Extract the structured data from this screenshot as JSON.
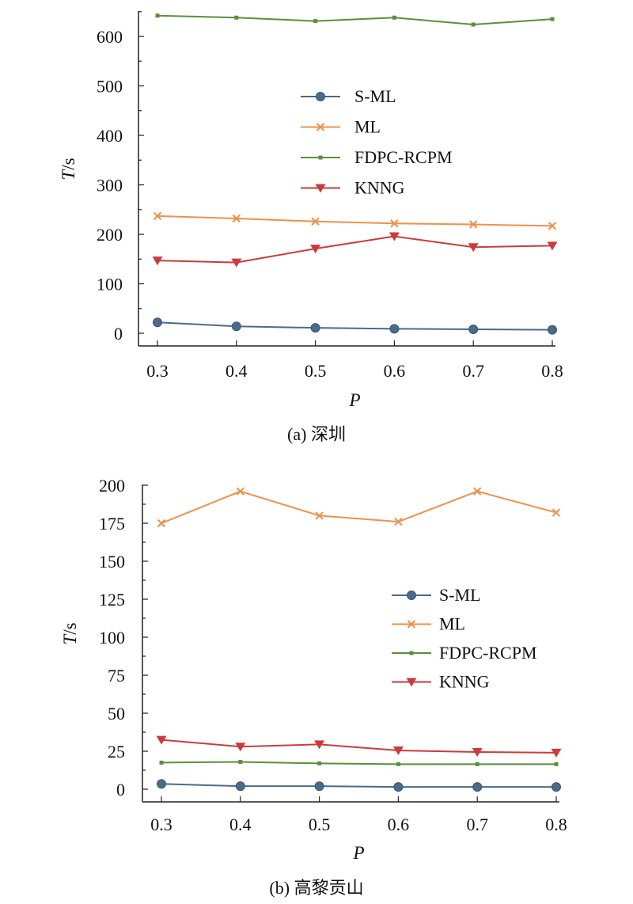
{
  "chart_data": [
    {
      "type": "line",
      "caption": "(a) 深圳",
      "xlabel": "P",
      "ylabel": "T/s",
      "x": [
        0.3,
        0.4,
        0.5,
        0.6,
        0.7,
        0.8
      ],
      "xticks": [
        "0.3",
        "0.4",
        "0.5",
        "0.6",
        "0.7",
        "0.8"
      ],
      "ylim": [
        0,
        650
      ],
      "yticks": [
        0,
        100,
        200,
        300,
        400,
        500,
        600
      ],
      "legend_position": "center",
      "grid": false,
      "series": [
        {
          "name": "S-ML",
          "color": "#4a6b8a",
          "marker": "circle",
          "values": [
            22,
            14,
            11,
            9,
            8,
            7
          ]
        },
        {
          "name": "ML",
          "color": "#f0904a",
          "marker": "x",
          "values": [
            237,
            232,
            226,
            222,
            220,
            217
          ]
        },
        {
          "name": "FDPC-RCPM",
          "color": "#5a8f3a",
          "marker": "dot",
          "values": [
            642,
            638,
            631,
            638,
            624,
            635
          ]
        },
        {
          "name": "KNNG",
          "color": "#cc3b3b",
          "marker": "triangle-down",
          "values": [
            147,
            143,
            171,
            196,
            174,
            177
          ]
        }
      ]
    },
    {
      "type": "line",
      "caption": "(b) 高黎贡山",
      "xlabel": "P",
      "ylabel": "T/s",
      "x": [
        0.3,
        0.4,
        0.5,
        0.6,
        0.7,
        0.8
      ],
      "xticks": [
        "0.3",
        "0.4",
        "0.5",
        "0.6",
        "0.7",
        "0.8"
      ],
      "ylim": [
        0,
        200
      ],
      "yticks": [
        0,
        25,
        50,
        75,
        100,
        125,
        150,
        175,
        200
      ],
      "legend_position": "center-right",
      "grid": false,
      "series": [
        {
          "name": "S-ML",
          "color": "#4a6b8a",
          "marker": "circle",
          "values": [
            3.5,
            2,
            2,
            1.5,
            1.5,
            1.5
          ]
        },
        {
          "name": "ML",
          "color": "#f0904a",
          "marker": "x",
          "values": [
            175,
            196,
            180,
            176,
            196,
            182
          ]
        },
        {
          "name": "FDPC-RCPM",
          "color": "#5a8f3a",
          "marker": "dot",
          "values": [
            17.5,
            18,
            17,
            16.5,
            16.5,
            16.5
          ]
        },
        {
          "name": "KNNG",
          "color": "#cc3b3b",
          "marker": "triangle-down",
          "values": [
            32.5,
            28,
            29.5,
            25.5,
            24.5,
            24
          ]
        }
      ]
    }
  ]
}
